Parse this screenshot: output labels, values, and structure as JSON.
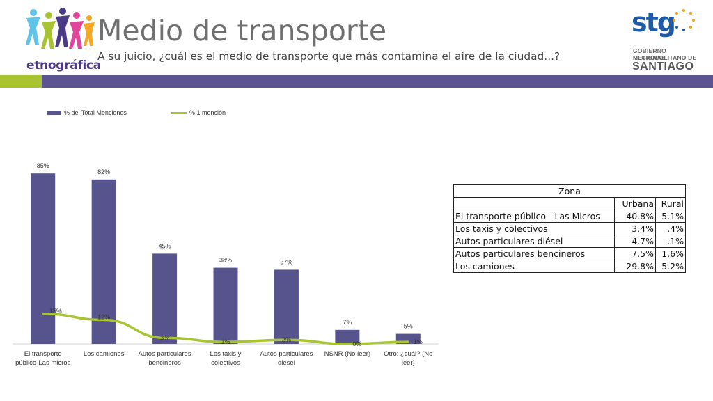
{
  "header": {
    "brand_left": "etnográfica",
    "title": "Medio de transporte",
    "subtitle": "A su juicio, ¿cuál es el medio de transporte que más contamina el aire de la ciudad...?",
    "brand_right": {
      "name": "stg",
      "line1": "GOBIERNO REGIONAL",
      "line2": "METROPOLITANO DE",
      "line3": "SANTIAGO"
    }
  },
  "colors": {
    "bar": "#57538c",
    "line": "#a8c531",
    "header_green": "#a8c531",
    "header_purple": "#5a5590"
  },
  "chart_data": {
    "type": "bar",
    "categories": [
      [
        "El transporte",
        "público-Las micros"
      ],
      [
        "Los camiones"
      ],
      [
        "Autos particulares",
        "bencineros"
      ],
      [
        "Los taxis y",
        "colectivos"
      ],
      [
        "Autos particulares",
        "diésel"
      ],
      [
        "NSNR (No leer)"
      ],
      [
        "Otro: ¿cuál? (No",
        "leer)"
      ]
    ],
    "series": [
      {
        "name": "% del Total Menciones",
        "type": "bar",
        "values": [
          85,
          82,
          45,
          38,
          37,
          7,
          5
        ],
        "labels": [
          "85%",
          "82%",
          "45%",
          "38%",
          "37%",
          "7%",
          "5%"
        ]
      },
      {
        "name": "% 1 mención",
        "type": "line",
        "values": [
          15,
          12,
          3,
          1,
          2,
          0,
          1
        ],
        "labels": [
          "15%",
          "12%",
          "3%",
          "1%",
          "2%",
          "0%",
          "1%"
        ]
      }
    ],
    "ylim": [
      0,
      100
    ],
    "grid": false,
    "legend": "top"
  },
  "table": {
    "header": "Zona",
    "columns": [
      "Urbana",
      "Rural"
    ],
    "rows": [
      {
        "label": "El transporte público - Las Micros",
        "urbana": "40.8%",
        "rural": "5.1%"
      },
      {
        "label": "Los taxis y colectivos",
        "urbana": "3.4%",
        "rural": ".4%"
      },
      {
        "label": "Autos particulares diésel",
        "urbana": "4.7%",
        "rural": ".1%"
      },
      {
        "label": "Autos particulares bencineros",
        "urbana": "7.5%",
        "rural": "1.6%"
      },
      {
        "label": "Los camiones",
        "urbana": "29.8%",
        "rural": "5.2%"
      }
    ]
  }
}
